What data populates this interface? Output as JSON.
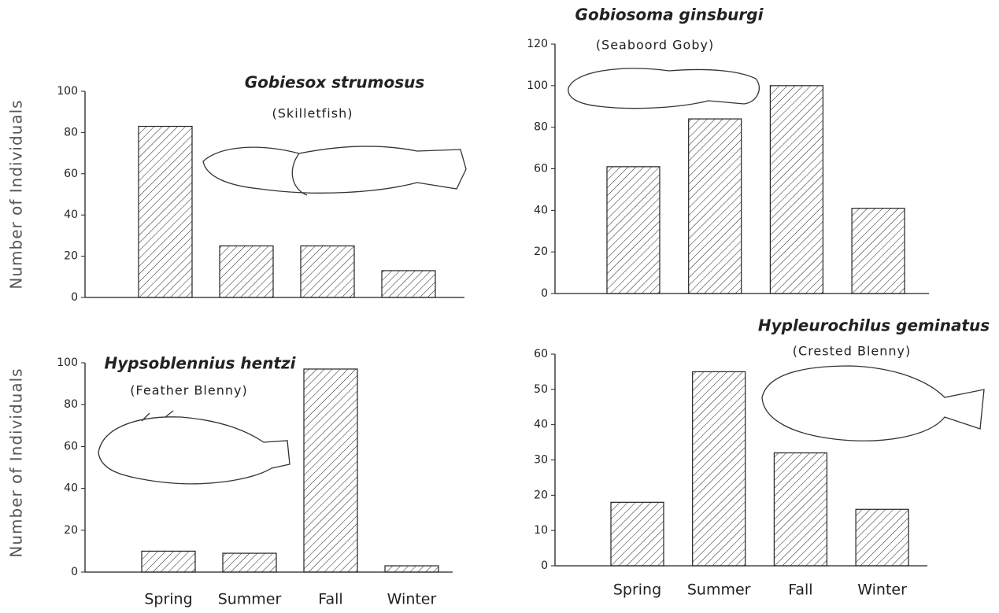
{
  "chart_data": [
    {
      "type": "bar",
      "title": "Gobiesox strumosus",
      "subtitle": "(Skilletfish)",
      "ylabel": "Number of Individuals",
      "categories": [
        null,
        null,
        null,
        null
      ],
      "values": [
        83,
        25,
        25,
        13
      ],
      "color": "#222",
      "ylim": [
        0,
        100
      ],
      "yticks": [
        0,
        20,
        40,
        60,
        80,
        100
      ]
    },
    {
      "type": "bar",
      "title": "Gobiosoma ginsburgi",
      "subtitle": "(Seaboord Goby)",
      "categories": [
        null,
        null,
        null,
        null
      ],
      "values": [
        61,
        84,
        100,
        41
      ],
      "color": "#222",
      "ylim": [
        0,
        120
      ],
      "yticks": [
        0,
        20,
        40,
        60,
        80,
        100,
        120
      ]
    },
    {
      "type": "bar",
      "title": "Hypsoblennius hentzi",
      "subtitle": "(Feather Blenny)",
      "ylabel": "Number of Individuals",
      "categories": [
        "Spring",
        "Summer",
        "Fall",
        "Winter"
      ],
      "values": [
        10,
        9,
        97,
        3
      ],
      "color": "#222",
      "ylim": [
        0,
        100
      ],
      "yticks": [
        0,
        20,
        40,
        60,
        80,
        100
      ]
    },
    {
      "type": "bar",
      "title": "Hypleurochilus geminatus",
      "subtitle": "(Crested Blenny)",
      "categories": [
        "Spring",
        "Summer",
        "Fall",
        "Winter"
      ],
      "values": [
        18,
        55,
        32,
        16
      ],
      "color": "#222",
      "ylim": [
        0,
        60
      ],
      "yticks": [
        0,
        10,
        20,
        30,
        40,
        50,
        60
      ]
    }
  ]
}
